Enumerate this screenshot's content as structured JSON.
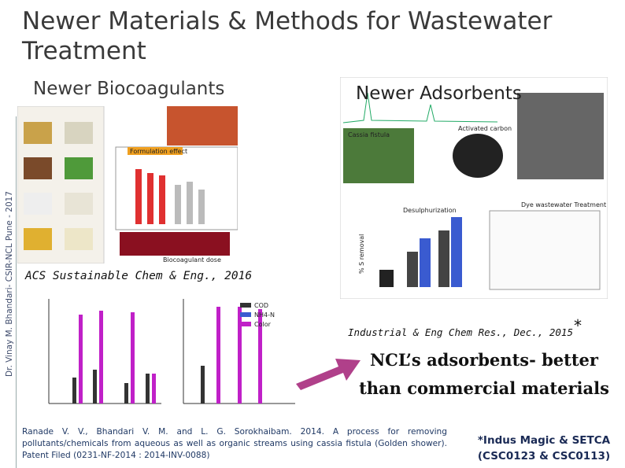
{
  "header": {
    "title": "Newer Materials & Methods for Wastewater Treatment",
    "side_note": "Dr. Vinay M. Bhandari- CSIR-NCL Pune - 2017"
  },
  "biocoagulants": {
    "heading": "Newer Biocoagulants",
    "reference": "ACS Sustainable Chem & Eng., 2016",
    "labels": [
      "Formulation effect",
      "Biocoagulant dose"
    ]
  },
  "adsorbents": {
    "heading": "Newer Adsorbents",
    "reference": "Industrial & Eng Chem Res., Dec., 2015",
    "reference_mark": "*",
    "labels": [
      "Cassia fistula",
      "Activated carbon",
      "Desulphurization",
      "Dye wastewater Treatment",
      "% S removal"
    ]
  },
  "chart_legend": [
    "COD",
    "NH4-N",
    "Color"
  ],
  "highlight": "NCL’s adsorbents- better than commercial materials",
  "patent": "Ranade V. V., Bhandari V. M. and L. G. Sorokhaibam. 2014. A process for removing pollutants/chemicals from aqueous as well as organic streams using cassia fistula (Golden shower). Patent Filed (0231-NF-2014 : 2014-INV-0088)",
  "footnote": "*Indus Magic & SETCA (CSC0123 & CSC0113)"
}
